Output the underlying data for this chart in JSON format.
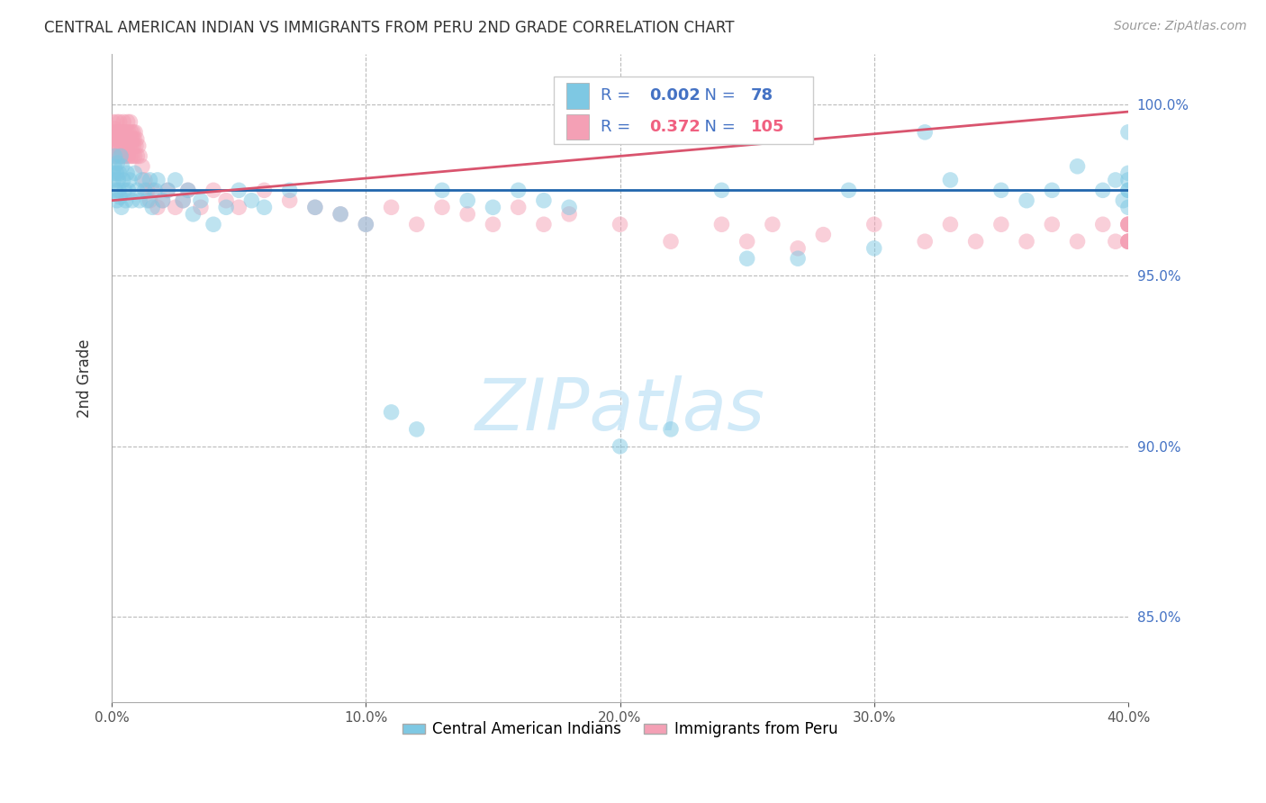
{
  "title": "CENTRAL AMERICAN INDIAN VS IMMIGRANTS FROM PERU 2ND GRADE CORRELATION CHART",
  "source": "Source: ZipAtlas.com",
  "ylabel": "2nd Grade",
  "x_range": [
    0.0,
    40.0
  ],
  "y_range": [
    82.5,
    101.5
  ],
  "blue_R": 0.002,
  "blue_N": 78,
  "pink_R": 0.372,
  "pink_N": 105,
  "blue_color": "#7ec8e3",
  "pink_color": "#f4a0b5",
  "blue_line_color": "#2166ac",
  "pink_line_color": "#d9546e",
  "watermark": "ZIPatlas",
  "blue_trend_y0": 97.5,
  "blue_trend_y1": 97.5,
  "pink_trend_y0": 97.2,
  "pink_trend_y1": 99.8,
  "blue_scatter_x": [
    0.05,
    0.08,
    0.1,
    0.12,
    0.15,
    0.18,
    0.2,
    0.22,
    0.25,
    0.28,
    0.3,
    0.32,
    0.35,
    0.38,
    0.4,
    0.45,
    0.5,
    0.55,
    0.6,
    0.65,
    0.7,
    0.8,
    0.9,
    1.0,
    1.1,
    1.2,
    1.3,
    1.4,
    1.5,
    1.6,
    1.7,
    1.8,
    2.0,
    2.2,
    2.5,
    2.8,
    3.0,
    3.2,
    3.5,
    4.0,
    4.5,
    5.0,
    5.5,
    6.0,
    7.0,
    8.0,
    9.0,
    10.0,
    11.0,
    12.0,
    13.0,
    14.0,
    15.0,
    16.0,
    17.0,
    18.0,
    20.0,
    22.0,
    24.0,
    25.0,
    27.0,
    29.0,
    30.0,
    32.0,
    33.0,
    35.0,
    36.0,
    37.0,
    38.0,
    39.0,
    39.5,
    39.8,
    40.0,
    40.0,
    40.0,
    40.0,
    40.0,
    40.0
  ],
  "blue_scatter_y": [
    98.0,
    97.8,
    98.2,
    98.5,
    97.5,
    98.0,
    97.2,
    98.3,
    97.8,
    97.5,
    98.0,
    97.3,
    98.5,
    97.0,
    98.2,
    97.8,
    97.5,
    97.2,
    98.0,
    97.5,
    97.8,
    97.2,
    98.0,
    97.5,
    97.2,
    97.8,
    97.5,
    97.2,
    97.8,
    97.0,
    97.5,
    97.8,
    97.2,
    97.5,
    97.8,
    97.2,
    97.5,
    96.8,
    97.2,
    96.5,
    97.0,
    97.5,
    97.2,
    97.0,
    97.5,
    97.0,
    96.8,
    96.5,
    91.0,
    90.5,
    97.5,
    97.2,
    97.0,
    97.5,
    97.2,
    97.0,
    90.0,
    90.5,
    97.5,
    95.5,
    95.5,
    97.5,
    95.8,
    99.2,
    97.8,
    97.5,
    97.2,
    97.5,
    98.2,
    97.5,
    97.8,
    97.2,
    97.8,
    99.2,
    97.5,
    97.0,
    98.0,
    97.5
  ],
  "pink_scatter_x": [
    0.02,
    0.04,
    0.06,
    0.08,
    0.1,
    0.12,
    0.14,
    0.16,
    0.18,
    0.2,
    0.22,
    0.24,
    0.26,
    0.28,
    0.3,
    0.32,
    0.34,
    0.36,
    0.38,
    0.4,
    0.42,
    0.44,
    0.46,
    0.48,
    0.5,
    0.52,
    0.54,
    0.56,
    0.58,
    0.6,
    0.62,
    0.64,
    0.66,
    0.68,
    0.7,
    0.72,
    0.74,
    0.76,
    0.78,
    0.8,
    0.82,
    0.84,
    0.86,
    0.88,
    0.9,
    0.92,
    0.95,
    0.98,
    1.0,
    1.05,
    1.1,
    1.2,
    1.3,
    1.4,
    1.5,
    1.6,
    1.8,
    2.0,
    2.2,
    2.5,
    2.8,
    3.0,
    3.5,
    4.0,
    4.5,
    5.0,
    6.0,
    7.0,
    8.0,
    9.0,
    10.0,
    11.0,
    12.0,
    13.0,
    14.0,
    15.0,
    16.0,
    17.0,
    18.0,
    20.0,
    22.0,
    24.0,
    25.0,
    26.0,
    27.0,
    28.0,
    30.0,
    32.0,
    33.0,
    34.0,
    35.0,
    36.0,
    37.0,
    38.0,
    39.0,
    39.5,
    40.0,
    40.0,
    40.0,
    40.0,
    40.0,
    40.0,
    40.0,
    40.0,
    40.0
  ],
  "pink_scatter_y": [
    99.2,
    99.5,
    98.8,
    99.0,
    99.3,
    98.5,
    99.0,
    99.2,
    98.8,
    99.5,
    98.5,
    99.2,
    99.0,
    98.8,
    99.5,
    98.5,
    99.2,
    98.8,
    99.0,
    98.5,
    99.2,
    98.8,
    99.5,
    98.5,
    99.2,
    98.8,
    99.0,
    98.5,
    99.2,
    98.8,
    99.5,
    98.5,
    99.2,
    99.0,
    98.8,
    99.5,
    98.5,
    99.2,
    98.8,
    99.0,
    98.5,
    99.2,
    98.8,
    99.0,
    98.5,
    99.2,
    98.8,
    99.0,
    98.5,
    98.8,
    98.5,
    98.2,
    97.8,
    97.5,
    97.2,
    97.5,
    97.0,
    97.2,
    97.5,
    97.0,
    97.2,
    97.5,
    97.0,
    97.5,
    97.2,
    97.0,
    97.5,
    97.2,
    97.0,
    96.8,
    96.5,
    97.0,
    96.5,
    97.0,
    96.8,
    96.5,
    97.0,
    96.5,
    96.8,
    96.5,
    96.0,
    96.5,
    96.0,
    96.5,
    95.8,
    96.2,
    96.5,
    96.0,
    96.5,
    96.0,
    96.5,
    96.0,
    96.5,
    96.0,
    96.5,
    96.0,
    96.5,
    96.0,
    96.5,
    96.0,
    96.5,
    96.0,
    96.5,
    96.0,
    96.0
  ]
}
